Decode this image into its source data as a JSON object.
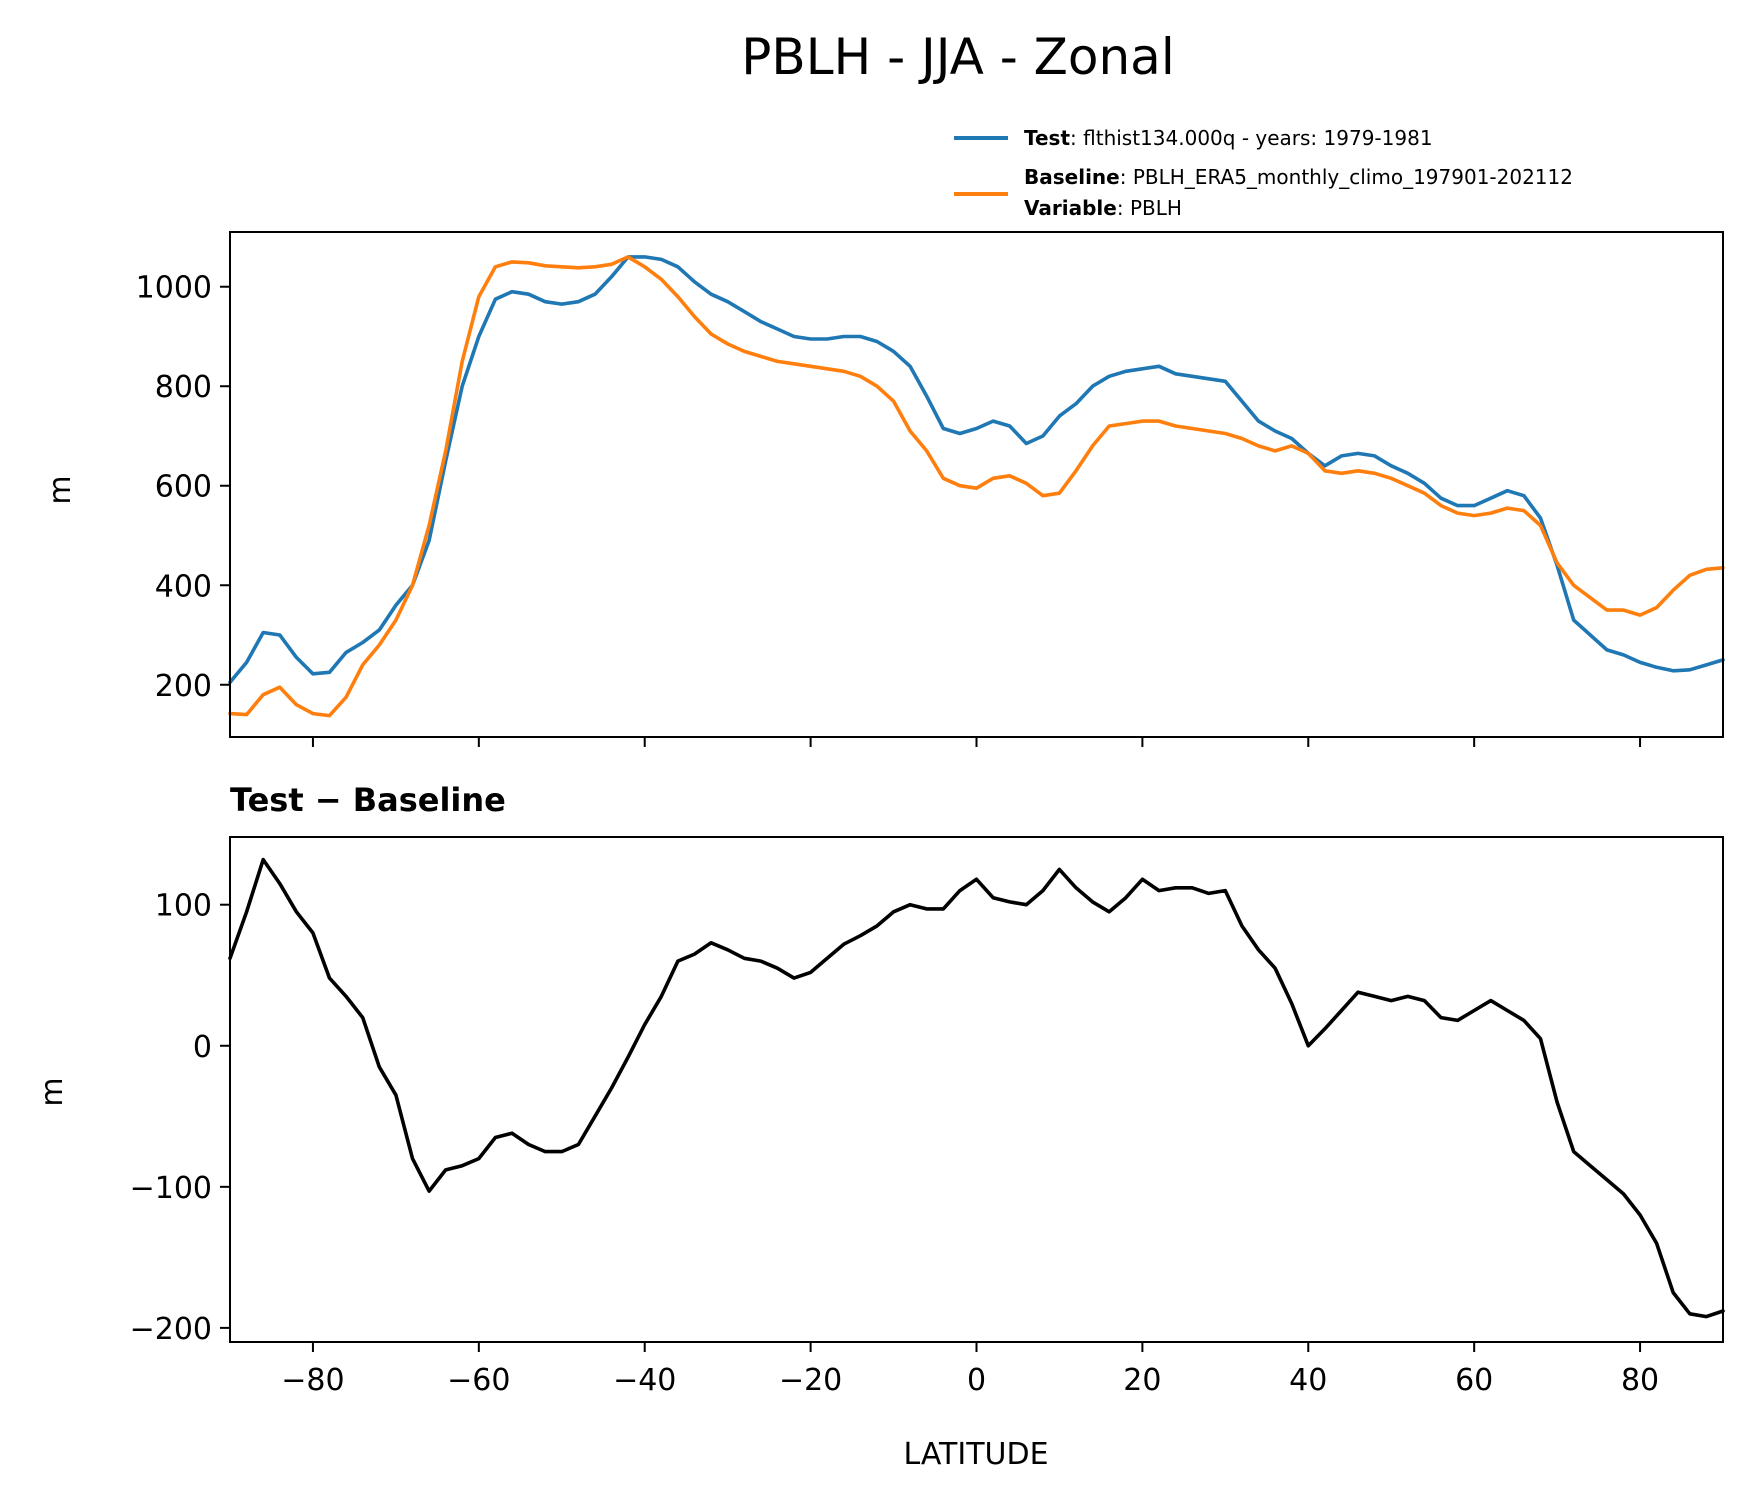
{
  "figure": {
    "title": "PBLH - JJA - Zonal"
  },
  "legend": [
    {
      "key": "Test",
      "sep": ": ",
      "text": "flthist134.000q - years: 1979-1981",
      "color": "#1f77b4"
    },
    {
      "key": "Baseline",
      "sep": ": ",
      "text": "PBLH_ERA5_monthly_climo_197901-202112",
      "color": "#ff7f0e"
    },
    {
      "key": "Variable",
      "sep": ": ",
      "text": "PBLH",
      "color": null
    }
  ],
  "chart_data": [
    {
      "type": "line",
      "title": "",
      "xlabel": "",
      "ylabel": "m",
      "xlim": [
        -90,
        90
      ],
      "ylim": [
        95,
        1110
      ],
      "yticks": [
        200,
        400,
        600,
        800,
        1000
      ],
      "xticks": [
        -80,
        -60,
        -40,
        -20,
        0,
        20,
        40,
        60,
        80
      ],
      "grid": false,
      "legend_position": "above-top-right",
      "series": [
        {
          "name": "Test",
          "color": "#1f77b4",
          "x": [
            -90,
            -88,
            -86,
            -84,
            -82,
            -80,
            -78,
            -76,
            -74,
            -72,
            -70,
            -68,
            -66,
            -64,
            -62,
            -60,
            -58,
            -56,
            -54,
            -52,
            -50,
            -48,
            -46,
            -44,
            -42,
            -40,
            -38,
            -36,
            -34,
            -32,
            -30,
            -28,
            -26,
            -24,
            -22,
            -20,
            -18,
            -16,
            -14,
            -12,
            -10,
            -8,
            -6,
            -4,
            -2,
            0,
            2,
            4,
            6,
            8,
            10,
            12,
            14,
            16,
            18,
            20,
            22,
            24,
            26,
            28,
            30,
            32,
            34,
            36,
            38,
            40,
            42,
            44,
            46,
            48,
            50,
            52,
            54,
            56,
            58,
            60,
            62,
            64,
            66,
            68,
            70,
            72,
            74,
            76,
            78,
            80,
            82,
            84,
            86,
            88,
            90
          ],
          "y": [
            205,
            245,
            305,
            300,
            255,
            222,
            225,
            265,
            285,
            310,
            360,
            400,
            490,
            650,
            800,
            900,
            975,
            990,
            985,
            970,
            965,
            970,
            985,
            1020,
            1060,
            1060,
            1055,
            1040,
            1010,
            985,
            970,
            950,
            930,
            915,
            900,
            895,
            895,
            900,
            900,
            890,
            870,
            840,
            780,
            715,
            705,
            715,
            730,
            720,
            685,
            700,
            740,
            765,
            800,
            820,
            830,
            835,
            840,
            825,
            820,
            815,
            810,
            770,
            730,
            710,
            695,
            665,
            640,
            660,
            665,
            660,
            640,
            625,
            605,
            575,
            560,
            560,
            575,
            590,
            580,
            535,
            440,
            330,
            300,
            270,
            260,
            245,
            235,
            228,
            230,
            240,
            250
          ]
        },
        {
          "name": "Baseline",
          "color": "#ff7f0e",
          "x": [
            -90,
            -88,
            -86,
            -84,
            -82,
            -80,
            -78,
            -76,
            -74,
            -72,
            -70,
            -68,
            -66,
            -64,
            -62,
            -60,
            -58,
            -56,
            -54,
            -52,
            -50,
            -48,
            -46,
            -44,
            -42,
            -40,
            -38,
            -36,
            -34,
            -32,
            -30,
            -28,
            -26,
            -24,
            -22,
            -20,
            -18,
            -16,
            -14,
            -12,
            -10,
            -8,
            -6,
            -4,
            -2,
            0,
            2,
            4,
            6,
            8,
            10,
            12,
            14,
            16,
            18,
            20,
            22,
            24,
            26,
            28,
            30,
            32,
            34,
            36,
            38,
            40,
            42,
            44,
            46,
            48,
            50,
            52,
            54,
            56,
            58,
            60,
            62,
            64,
            66,
            68,
            70,
            72,
            74,
            76,
            78,
            80,
            82,
            84,
            86,
            88,
            90
          ],
          "y": [
            142,
            140,
            180,
            195,
            160,
            142,
            138,
            175,
            240,
            280,
            330,
            400,
            520,
            670,
            850,
            980,
            1040,
            1050,
            1048,
            1042,
            1040,
            1038,
            1040,
            1045,
            1060,
            1040,
            1015,
            980,
            940,
            905,
            885,
            870,
            860,
            850,
            845,
            840,
            835,
            830,
            820,
            800,
            770,
            710,
            670,
            615,
            600,
            595,
            615,
            620,
            605,
            580,
            585,
            630,
            680,
            720,
            725,
            730,
            730,
            720,
            715,
            710,
            705,
            695,
            680,
            670,
            680,
            665,
            630,
            625,
            630,
            625,
            615,
            600,
            585,
            560,
            545,
            540,
            545,
            555,
            550,
            520,
            445,
            400,
            375,
            350,
            350,
            340,
            355,
            390,
            420,
            432,
            435
          ]
        }
      ]
    },
    {
      "type": "line",
      "title": "Test − Baseline",
      "xlabel": "LATITUDE",
      "ylabel": "m",
      "xlim": [
        -90,
        90
      ],
      "ylim": [
        -210,
        148
      ],
      "yticks": [
        -200,
        -100,
        0,
        100
      ],
      "xticks": [
        -80,
        -60,
        -40,
        -20,
        0,
        20,
        40,
        60,
        80
      ],
      "grid": false,
      "series": [
        {
          "name": "",
          "color": "#000000",
          "x": [
            -90,
            -88,
            -86,
            -84,
            -82,
            -80,
            -78,
            -76,
            -74,
            -72,
            -70,
            -68,
            -66,
            -64,
            -62,
            -60,
            -58,
            -56,
            -54,
            -52,
            -50,
            -48,
            -46,
            -44,
            -42,
            -40,
            -38,
            -36,
            -34,
            -32,
            -30,
            -28,
            -26,
            -24,
            -22,
            -20,
            -18,
            -16,
            -14,
            -12,
            -10,
            -8,
            -6,
            -4,
            -2,
            0,
            2,
            4,
            6,
            8,
            10,
            12,
            14,
            16,
            18,
            20,
            22,
            24,
            26,
            28,
            30,
            32,
            34,
            36,
            38,
            40,
            42,
            44,
            46,
            48,
            50,
            52,
            54,
            56,
            58,
            60,
            62,
            64,
            66,
            68,
            70,
            72,
            74,
            76,
            78,
            80,
            82,
            84,
            86,
            88,
            90
          ],
          "y": [
            62,
            95,
            132,
            115,
            95,
            80,
            48,
            35,
            20,
            -15,
            -35,
            -80,
            -103,
            -88,
            -85,
            -80,
            -65,
            -62,
            -70,
            -75,
            -75,
            -70,
            -50,
            -30,
            -8,
            15,
            35,
            60,
            65,
            73,
            68,
            62,
            60,
            55,
            48,
            52,
            62,
            72,
            78,
            85,
            95,
            100,
            97,
            97,
            110,
            118,
            105,
            102,
            100,
            110,
            125,
            112,
            102,
            95,
            105,
            118,
            110,
            112,
            112,
            108,
            110,
            85,
            68,
            55,
            30,
            0,
            12,
            25,
            38,
            35,
            32,
            35,
            32,
            20,
            18,
            25,
            32,
            25,
            18,
            5,
            -40,
            -75,
            -85,
            -95,
            -105,
            -120,
            -140,
            -175,
            -190,
            -192,
            -188
          ]
        }
      ]
    }
  ]
}
